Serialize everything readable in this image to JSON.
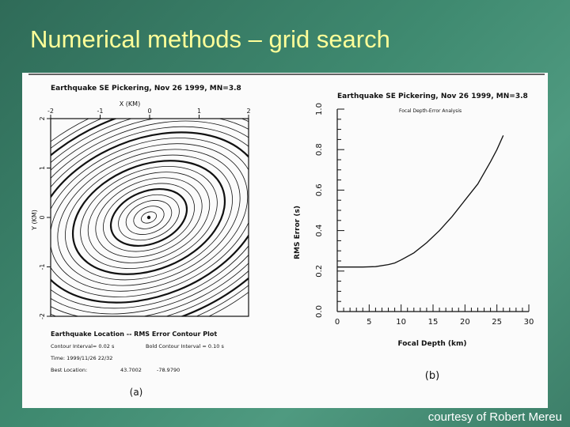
{
  "slide": {
    "title": "Numerical methods – grid search",
    "credit": "courtesy of Robert Mereu"
  },
  "panel_a": {
    "header": "Earthquake SE Pickering, Nov 26 1999, MN=3.8",
    "x_axis_label": "X (KM)",
    "y_axis_label": "Y (KM)",
    "x_ticks": [
      "-2",
      "-1",
      "0",
      "1",
      "2"
    ],
    "y_ticks": [
      "2",
      "1",
      "0",
      "-1",
      "-2"
    ],
    "caption_title": "Earthquake Location -- RMS Error Contour Plot",
    "contour_interval": "Contour Interval= 0.02 s",
    "bold_interval": "Bold Contour Interval = 0.10 s",
    "time": "Time: 1999/11/26 22/32",
    "best_location_label": "Best Location:",
    "best_location_lat": "43.7002",
    "best_location_lon": "-78.9790",
    "panel_label": "(a)"
  },
  "panel_b": {
    "header": "Earthquake SE Pickering, Nov 26 1999, MN=3.8",
    "subtitle": "Focal Depth-Error Analysis",
    "x_axis_label": "Focal Depth (km)",
    "y_axis_label": "RMS Error (s)",
    "x_ticks": [
      "0",
      "5",
      "10",
      "15",
      "20",
      "25",
      "30"
    ],
    "y_ticks": [
      "0.0",
      "0.2",
      "0.4",
      "0.6",
      "0.8",
      "1.0"
    ],
    "panel_label": "(b)"
  },
  "chart_data": {
    "type": "line",
    "title": "Focal Depth-Error Analysis",
    "xlabel": "Focal Depth (km)",
    "ylabel": "RMS Error (s)",
    "xlim": [
      0,
      30
    ],
    "ylim": [
      0,
      1.0
    ],
    "x": [
      0,
      2,
      4,
      6,
      8,
      9,
      10,
      12,
      14,
      16,
      18,
      20,
      22,
      24,
      25,
      26
    ],
    "y": [
      0.22,
      0.22,
      0.22,
      0.222,
      0.232,
      0.24,
      0.255,
      0.29,
      0.34,
      0.4,
      0.47,
      0.55,
      0.63,
      0.74,
      0.8,
      0.87
    ]
  }
}
